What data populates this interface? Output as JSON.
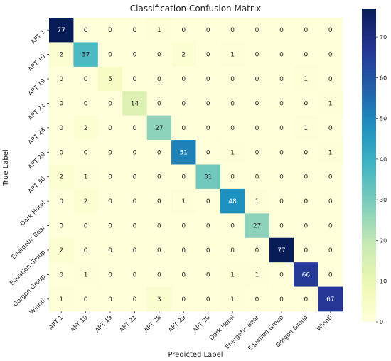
{
  "chart_data": {
    "type": "heatmap",
    "title": "Classification Confusion Matrix",
    "xlabel": "Predicted Label",
    "ylabel": "True Label",
    "x_categories": [
      "APT 1",
      "APT 10",
      "APT 19",
      "APT 21",
      "APT 28",
      "APT 29",
      "APT 30",
      "Dark Hotel",
      "Energetic Bear",
      "Equation Group",
      "Gorgon Group",
      "Winnti"
    ],
    "y_categories": [
      "APT 1",
      "APT 10",
      "APT 19",
      "APT 21",
      "APT 28",
      "APT 29",
      "APT 30",
      "Dark Hotel",
      "Energetic Bear",
      "Equation Group",
      "Gorgon Group",
      "Winnti"
    ],
    "values": [
      [
        77,
        0,
        0,
        0,
        1,
        0,
        0,
        0,
        0,
        0,
        0,
        0
      ],
      [
        2,
        37,
        0,
        0,
        0,
        2,
        0,
        1,
        0,
        0,
        0,
        0
      ],
      [
        0,
        0,
        5,
        0,
        0,
        0,
        0,
        0,
        0,
        0,
        1,
        0
      ],
      [
        0,
        0,
        0,
        14,
        0,
        0,
        0,
        0,
        0,
        0,
        0,
        1
      ],
      [
        0,
        2,
        0,
        0,
        27,
        0,
        0,
        0,
        0,
        0,
        1,
        0
      ],
      [
        0,
        0,
        0,
        0,
        0,
        51,
        0,
        1,
        0,
        0,
        0,
        1
      ],
      [
        2,
        1,
        0,
        0,
        0,
        0,
        31,
        0,
        0,
        0,
        0,
        0
      ],
      [
        0,
        2,
        0,
        0,
        0,
        1,
        0,
        48,
        1,
        0,
        0,
        0
      ],
      [
        0,
        0,
        0,
        0,
        0,
        0,
        0,
        0,
        27,
        0,
        0,
        0
      ],
      [
        2,
        0,
        0,
        0,
        0,
        0,
        0,
        0,
        0,
        77,
        0,
        0
      ],
      [
        0,
        1,
        0,
        0,
        0,
        0,
        0,
        1,
        1,
        0,
        66,
        0
      ],
      [
        1,
        0,
        0,
        0,
        3,
        0,
        0,
        1,
        0,
        0,
        0,
        67
      ]
    ],
    "colorbar": {
      "colormap": "YlGnBu",
      "range": [
        0,
        77
      ],
      "ticks": [
        0,
        10,
        20,
        30,
        40,
        50,
        60,
        70
      ]
    },
    "grid": false,
    "legend": "colorbar-right"
  }
}
